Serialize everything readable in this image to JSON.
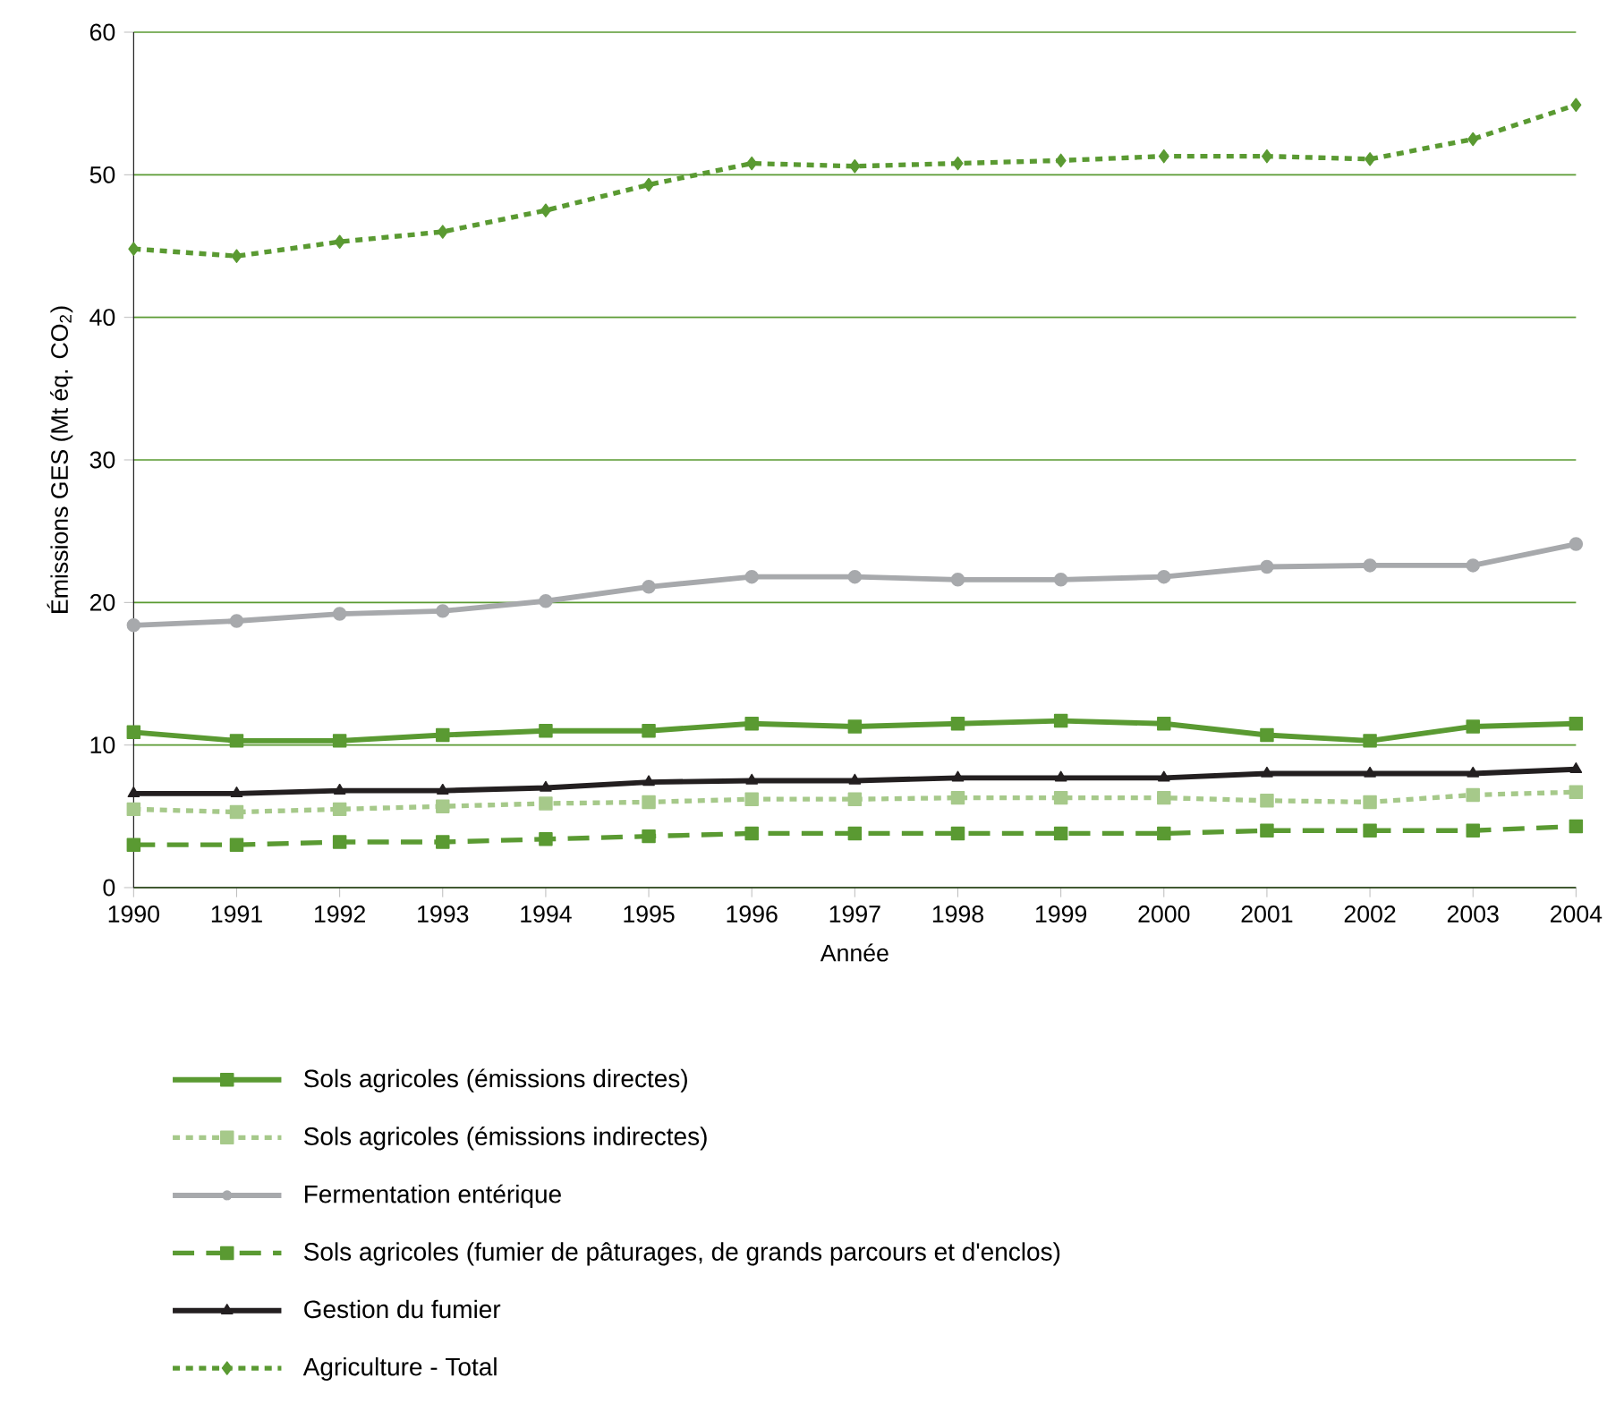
{
  "chart_data": {
    "type": "line",
    "xlabel": "Année",
    "ylabel": "Émissions GES (Mt éq. CO$_{2}$)",
    "x": [
      1990,
      1991,
      1992,
      1993,
      1994,
      1995,
      1996,
      1997,
      1998,
      1999,
      2000,
      2001,
      2002,
      2003,
      2004
    ],
    "xlim": [
      1990,
      2004
    ],
    "xticks": [
      1990,
      1991,
      1992,
      1993,
      1994,
      1995,
      1996,
      1997,
      1998,
      1999,
      2000,
      2001,
      2002,
      2003,
      2004
    ],
    "ylim": [
      0,
      60
    ],
    "yticks": [
      0,
      10,
      20,
      30,
      40,
      50,
      60
    ],
    "grid": "y",
    "legend": "bottom",
    "series": [
      {
        "name": "Sols agricoles (émissions directes)",
        "color": "#5a9a32",
        "marker": "square",
        "line_style": "solid",
        "values": [
          10.9,
          10.3,
          10.3,
          10.7,
          11.0,
          11.0,
          11.5,
          11.3,
          11.5,
          11.7,
          11.5,
          10.7,
          10.3,
          11.3,
          11.5
        ]
      },
      {
        "name": "Sols agricoles (émissions indirectes)",
        "color": "#a6c98a",
        "marker": "square",
        "line_style": "dotted",
        "values": [
          5.5,
          5.3,
          5.5,
          5.7,
          5.9,
          6.0,
          6.2,
          6.2,
          6.3,
          6.3,
          6.3,
          6.1,
          6.0,
          6.5,
          6.7
        ]
      },
      {
        "name": "Fermentation entérique",
        "color": "#a7a9ac",
        "marker": "circle",
        "line_style": "solid",
        "values": [
          18.4,
          18.7,
          19.2,
          19.4,
          20.1,
          21.1,
          21.8,
          21.8,
          21.6,
          21.6,
          21.8,
          22.5,
          22.6,
          22.6,
          24.1
        ]
      },
      {
        "name": "Sols agricoles (fumier de pâturages, de grands parcours et d'enclos)",
        "color": "#5a9a32",
        "marker": "square",
        "line_style": "dashed",
        "values": [
          3.0,
          3.0,
          3.2,
          3.2,
          3.4,
          3.6,
          3.8,
          3.8,
          3.8,
          3.8,
          3.8,
          4.0,
          4.0,
          4.0,
          4.3
        ]
      },
      {
        "name": "Gestion du fumier",
        "color": "#231f20",
        "marker": "triangle",
        "line_style": "solid",
        "values": [
          6.6,
          6.6,
          6.8,
          6.8,
          7.0,
          7.4,
          7.5,
          7.5,
          7.7,
          7.7,
          7.7,
          8.0,
          8.0,
          8.0,
          8.3
        ]
      },
      {
        "name": "Agriculture - Total",
        "color": "#5a9a32",
        "marker": "diamond",
        "line_style": "dotted",
        "values": [
          44.8,
          44.3,
          45.3,
          46.0,
          47.5,
          49.3,
          50.8,
          50.6,
          50.8,
          51.0,
          51.3,
          51.3,
          51.1,
          52.5,
          54.9
        ]
      }
    ]
  }
}
